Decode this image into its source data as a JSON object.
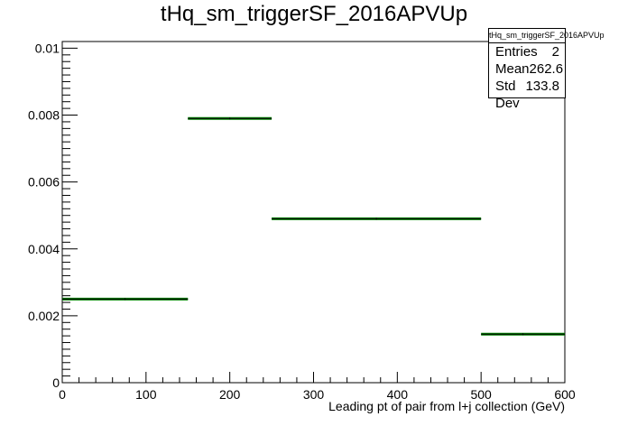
{
  "chart_data": {
    "type": "histogram",
    "title": "tHq_sm_triggerSF_2016APVUp",
    "xlabel": "Leading pt of pair from l+j collection (GeV)",
    "ylabel": "",
    "xlim": [
      0,
      600
    ],
    "ylim": [
      0,
      0.0102
    ],
    "x_ticks": [
      "0",
      "100",
      "200",
      "300",
      "400",
      "500",
      "600"
    ],
    "y_ticks": [
      "0",
      "0.002",
      "0.004",
      "0.006",
      "0.008",
      "0.01"
    ],
    "bins": [
      {
        "x_low": 0,
        "x_high": 150,
        "value": 0.0025
      },
      {
        "x_low": 150,
        "x_high": 250,
        "value": 0.0079
      },
      {
        "x_low": 250,
        "x_high": 500,
        "value": 0.0049
      },
      {
        "x_low": 500,
        "x_high": 600,
        "value": 0.00145
      }
    ],
    "stats": {
      "title": "tHq_sm_triggerSF_2016APVUp",
      "entries_label": "Entries",
      "entries": "2",
      "mean_label": "Mean",
      "mean": "262.6",
      "stddev_label": "Std Dev",
      "stddev": "133.8"
    },
    "colors": {
      "line": "#000000",
      "error_band": "#008000"
    }
  }
}
